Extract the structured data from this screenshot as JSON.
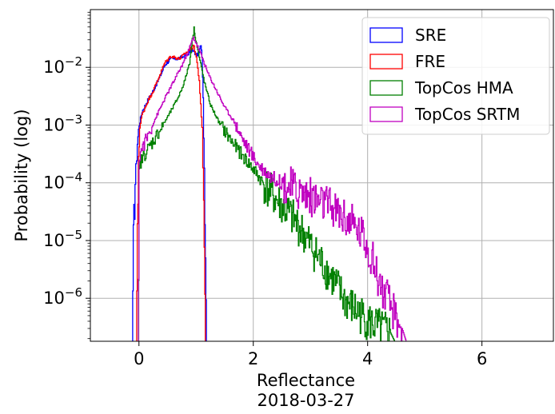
{
  "chart_data": {
    "type": "line",
    "xlabel": "Reflectance",
    "subtitle": "2018-03-27",
    "ylabel": "Probability (log)",
    "y_scale": "log",
    "xlim": [
      -0.85,
      7.25
    ],
    "ylim": [
      1.8e-07,
      0.1
    ],
    "x_ticks": [
      0,
      2,
      4,
      6
    ],
    "x_tick_labels": [
      "0",
      "2",
      "4",
      "6"
    ],
    "y_ticks": [
      1e-06,
      1e-05,
      0.0001,
      0.001,
      0.01
    ],
    "y_tick_labels": [
      {
        "base": "10",
        "exp": "−6"
      },
      {
        "base": "10",
        "exp": "−5"
      },
      {
        "base": "10",
        "exp": "−4"
      },
      {
        "base": "10",
        "exp": "−3"
      },
      {
        "base": "10",
        "exp": "−2"
      }
    ],
    "grid": true,
    "legend_position": "top-right",
    "series": [
      {
        "name": "SRE",
        "color": "#0000ff",
        "points": [
          [
            -0.12,
            1.8e-07
          ],
          [
            -0.1,
            1e-05
          ],
          [
            -0.07,
            0.0001
          ],
          [
            -0.03,
            0.0005
          ],
          [
            0.0,
            0.001
          ],
          [
            0.05,
            0.0017
          ],
          [
            0.15,
            0.0027
          ],
          [
            0.25,
            0.004
          ],
          [
            0.35,
            0.0065
          ],
          [
            0.45,
            0.011
          ],
          [
            0.55,
            0.014
          ],
          [
            0.65,
            0.014
          ],
          [
            0.75,
            0.015
          ],
          [
            0.85,
            0.017
          ],
          [
            0.93,
            0.02
          ],
          [
            1.0,
            0.016
          ],
          [
            1.05,
            0.018
          ],
          [
            1.08,
            0.025
          ],
          [
            1.1,
            0.016
          ],
          [
            1.12,
            0.003
          ],
          [
            1.14,
            0.0002
          ],
          [
            1.16,
            5e-06
          ],
          [
            1.18,
            1.8e-07
          ]
        ]
      },
      {
        "name": "FRE",
        "color": "#ff0000",
        "points": [
          [
            -0.05,
            1.8e-07
          ],
          [
            -0.03,
            1e-05
          ],
          [
            -0.01,
            0.0003
          ],
          [
            0.01,
            0.0009
          ],
          [
            0.05,
            0.0015
          ],
          [
            0.15,
            0.0026
          ],
          [
            0.25,
            0.004
          ],
          [
            0.35,
            0.007
          ],
          [
            0.45,
            0.012
          ],
          [
            0.55,
            0.0155
          ],
          [
            0.62,
            0.015
          ],
          [
            0.7,
            0.014
          ],
          [
            0.8,
            0.017
          ],
          [
            0.9,
            0.021
          ],
          [
            0.96,
            0.023
          ],
          [
            1.0,
            0.015
          ],
          [
            1.05,
            0.006
          ],
          [
            1.1,
            0.0008
          ],
          [
            1.13,
            5e-05
          ],
          [
            1.16,
            1.8e-07
          ]
        ]
      },
      {
        "name": "TopCos HMA",
        "color": "#008000",
        "points": [
          [
            -0.02,
            1.8e-07
          ],
          [
            -0.01,
            1e-06
          ],
          [
            0.0,
            0.00015
          ],
          [
            0.03,
            0.00023
          ],
          [
            0.1,
            0.00032
          ],
          [
            0.2,
            0.00045
          ],
          [
            0.3,
            0.00065
          ],
          [
            0.4,
            0.00095
          ],
          [
            0.5,
            0.0014
          ],
          [
            0.6,
            0.0021
          ],
          [
            0.7,
            0.0033
          ],
          [
            0.8,
            0.006
          ],
          [
            0.88,
            0.012
          ],
          [
            0.93,
            0.03
          ],
          [
            0.96,
            0.048
          ],
          [
            0.99,
            0.03
          ],
          [
            1.05,
            0.015
          ],
          [
            1.15,
            0.005
          ],
          [
            1.25,
            0.0022
          ],
          [
            1.4,
            0.0011
          ],
          [
            1.6,
            0.00055
          ],
          [
            1.8,
            0.0003
          ],
          [
            2.0,
            0.00017
          ],
          [
            2.2,
            9e-05
          ],
          [
            2.4,
            5e-05
          ],
          [
            2.6,
            3e-05
          ],
          [
            2.8,
            1.7e-05
          ],
          [
            3.0,
            8e-06
          ],
          [
            3.2,
            4e-06
          ],
          [
            3.4,
            2e-06
          ],
          [
            3.6,
            9e-07
          ],
          [
            3.8,
            6e-07
          ],
          [
            4.0,
            4e-07
          ],
          [
            4.2,
            3e-07
          ],
          [
            4.4,
            2.5e-07
          ],
          [
            4.47,
            1.8e-07
          ]
        ]
      },
      {
        "name": "TopCos SRTM",
        "color": "#c000c0",
        "points": [
          [
            -0.02,
            1.8e-07
          ],
          [
            -0.01,
            1e-06
          ],
          [
            0.0,
            0.00028
          ],
          [
            0.05,
            0.0004
          ],
          [
            0.15,
            0.00065
          ],
          [
            0.25,
            0.0011
          ],
          [
            0.35,
            0.0018
          ],
          [
            0.45,
            0.0029
          ],
          [
            0.55,
            0.0045
          ],
          [
            0.65,
            0.007
          ],
          [
            0.75,
            0.011
          ],
          [
            0.85,
            0.018
          ],
          [
            0.92,
            0.028
          ],
          [
            0.95,
            0.033
          ],
          [
            1.0,
            0.026
          ],
          [
            1.1,
            0.015
          ],
          [
            1.2,
            0.008
          ],
          [
            1.35,
            0.004
          ],
          [
            1.5,
            0.002
          ],
          [
            1.65,
            0.0012
          ],
          [
            1.8,
            0.0006
          ],
          [
            1.95,
            0.00033
          ],
          [
            2.1,
            0.0002
          ],
          [
            2.3,
            0.00013
          ],
          [
            2.5,
            0.0001
          ],
          [
            2.7,
            8e-05
          ],
          [
            2.9,
            6.5e-05
          ],
          [
            3.1,
            5e-05
          ],
          [
            3.3,
            4e-05
          ],
          [
            3.5,
            3e-05
          ],
          [
            3.7,
            2e-05
          ],
          [
            3.9,
            1.3e-05
          ],
          [
            4.0,
            8e-06
          ],
          [
            4.1,
            4e-06
          ],
          [
            4.2,
            2e-06
          ],
          [
            4.3,
            1.1e-06
          ],
          [
            4.4,
            7e-07
          ],
          [
            4.5,
            4.5e-07
          ],
          [
            4.6,
            3e-07
          ],
          [
            4.67,
            1.8e-07
          ]
        ]
      }
    ]
  }
}
